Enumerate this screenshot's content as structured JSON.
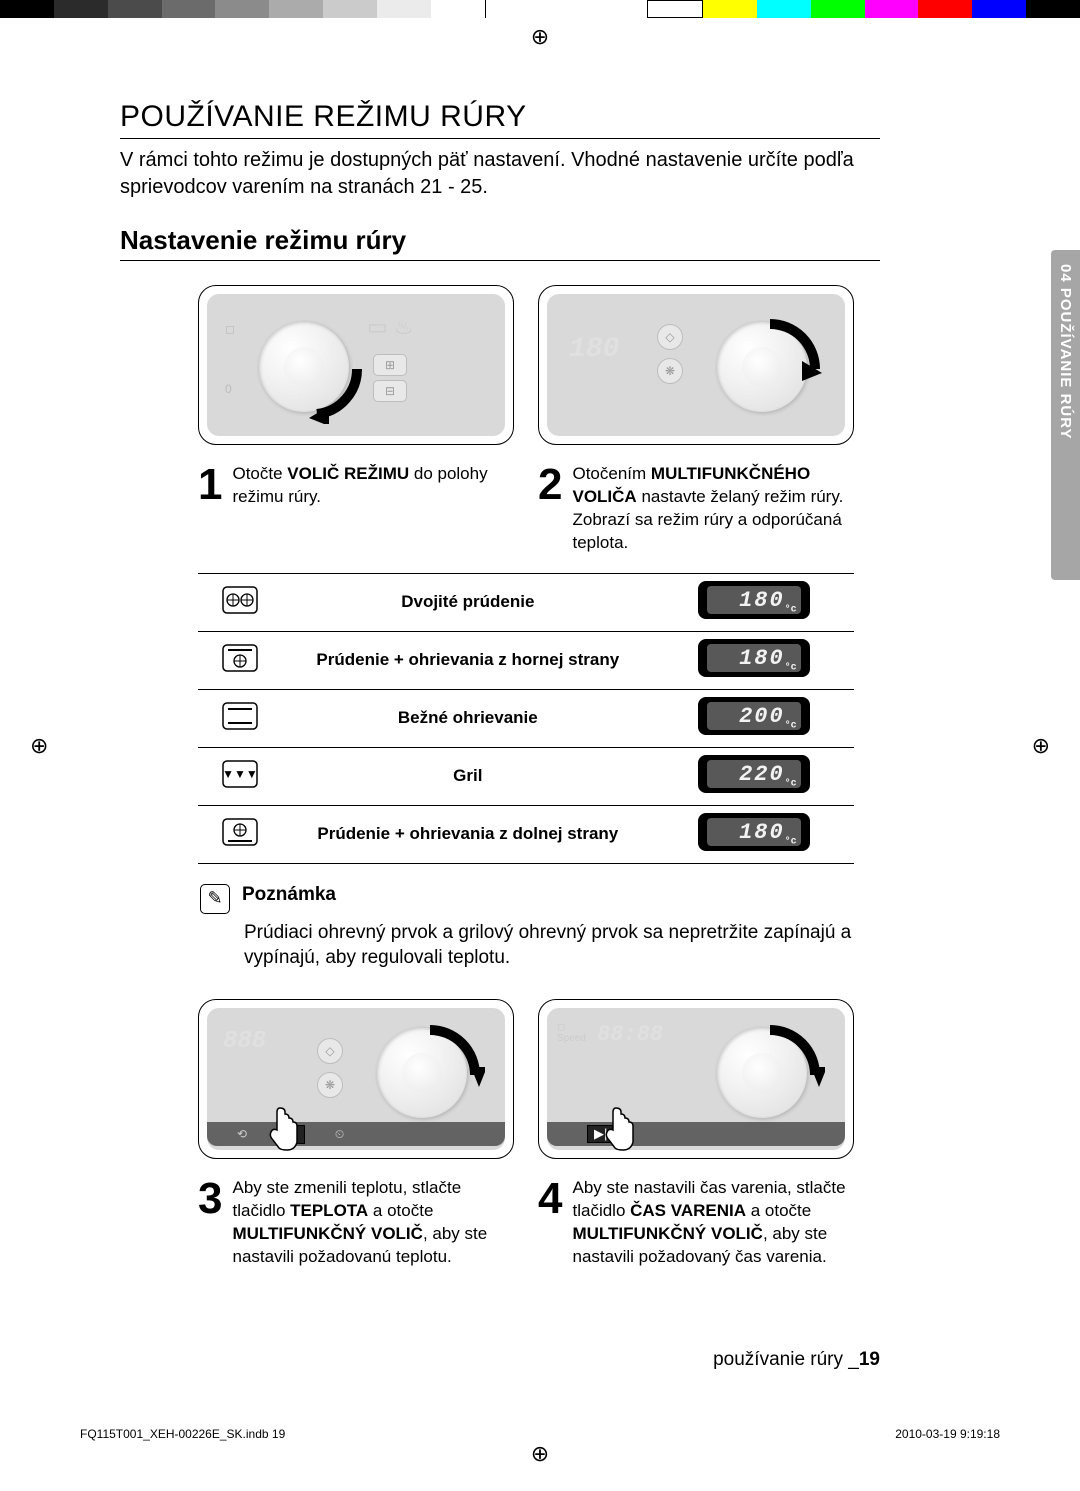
{
  "colorbar": {
    "left": [
      "#000000",
      "#2b2b2b",
      "#4b4b4b",
      "#6b6b6b",
      "#8b8b8b",
      "#ababab",
      "#cbcbcb",
      "#ebebeb",
      "#ffffff"
    ],
    "right": [
      "#ffffff",
      "#ffff00",
      "#00ffff",
      "#00ff00",
      "#ff00ff",
      "#ff0000",
      "#0000ff",
      "#000000"
    ]
  },
  "main_title": "POUŽÍVANIE REŽIMU RÚRY",
  "intro": "V rámci tohto režimu je dostupných päť nastavení. Vhodné nastavenie určíte podľa sprievodcov varením na stranách 21 - 25.",
  "sub_title": "Nastavenie režimu rúry",
  "side_tab": "04 POUŽÍVANIE RÚRY",
  "steps": [
    {
      "num": "1",
      "text_parts": [
        "Otočte ",
        "VOLIČ REŽIMU",
        " do polohy režimu rúry."
      ]
    },
    {
      "num": "2",
      "text_parts": [
        "Otočením ",
        "MULTIFUNKČNÉHO VOLIČA",
        " nastavte želaný režim rúry. Zobrazí sa režim rúry a odporúčaná teplota."
      ]
    },
    {
      "num": "3",
      "text_parts": [
        "Aby ste zmenili teplotu, stlačte tlačidlo ",
        "TEPLOTA",
        " a otočte ",
        "MULTIFUNKČNÝ VOLIČ",
        ", aby ste nastavili požadovanú teplotu."
      ]
    },
    {
      "num": "4",
      "text_parts": [
        "Aby ste nastavili čas varenia, stlačte tlačidlo ",
        "ČAS VARENIA",
        " a otočte ",
        "MULTIFUNKČNÝ VOLIČ",
        ", aby ste nastavili požadovaný čas varenia."
      ]
    }
  ],
  "modes": [
    {
      "icon": "dual-fan",
      "label": "Dvojité prúdenie",
      "temp": "180",
      "unit": "°c"
    },
    {
      "icon": "fan-top",
      "label": "Prúdenie + ohrievania z hornej strany",
      "temp": "180",
      "unit": "°c"
    },
    {
      "icon": "conventional",
      "label": "Bežné ohrievanie",
      "temp": "200",
      "unit": "°c"
    },
    {
      "icon": "grill",
      "label": "Gril",
      "temp": "220",
      "unit": "°c"
    },
    {
      "icon": "fan-bottom",
      "label": "Prúdenie + ohrievania z dolnej strany",
      "temp": "180",
      "unit": "°c"
    }
  ],
  "note": {
    "title": "Poznámka",
    "body": "Prúdiaci ohrevný prvok a grilový ohrevný prvok sa nepretržite zapínajú a vypínajú, aby regulovali teplotu."
  },
  "page_footer": {
    "label": "používanie rúry _",
    "page": "19"
  },
  "print_footer": {
    "left": "FQ115T001_XEH-00226E_SK.indb   19",
    "right": "2010-03-19     9:19:18"
  },
  "panel_ghost": {
    "step1": "",
    "step2": "180",
    "step3": "888",
    "step4": "88:88"
  }
}
